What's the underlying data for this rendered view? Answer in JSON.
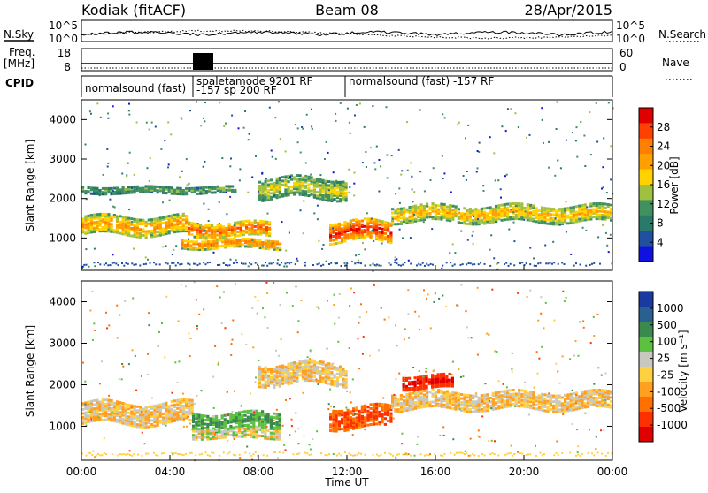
{
  "header": {
    "station": "Kodiak (fitACF)",
    "beam": "Beam 08",
    "date": "28/Apr/2015"
  },
  "top_panels": {
    "nsky_label": "N.Sky",
    "nsearch_label": "N.Search",
    "noise_ticks": [
      "10^5",
      "10^0"
    ],
    "freq_label": "Freq.",
    "freq_unit": "[MHz]",
    "freq_ticks": [
      "18",
      "8"
    ],
    "nave_label": "Nave",
    "nave_ticks": [
      "60",
      "0"
    ],
    "cpid_label": "CPID",
    "cpid_segments": [
      {
        "name": "normalsound (fast)",
        "sub": ""
      },
      {
        "name": "spaletamode 9201 RF",
        "sub": "-157 sp 200 RF"
      },
      {
        "name": "normalsound (fast)  -157 RF",
        "sub": ""
      }
    ]
  },
  "axes": {
    "ylabel": "Slant Range [km]",
    "xlabel": "Time UT",
    "x_ticks": [
      "00:00",
      "04:00",
      "08:00",
      "12:00",
      "16:00",
      "20:00",
      "00:00"
    ],
    "y_ticks": [
      "4000",
      "3000",
      "2000",
      "1000"
    ]
  },
  "power_colorbar": {
    "title": "Power [dB]",
    "ticks": [
      "28",
      "24",
      "20",
      "16",
      "12",
      "8",
      "4"
    ],
    "colors": [
      "#e00000",
      "#ff4000",
      "#ff8000",
      "#ffa000",
      "#ffd200",
      "#a0c040",
      "#409060",
      "#2a7a6a",
      "#2050a0",
      "#1010e0"
    ]
  },
  "velocity_colorbar": {
    "title": "Velocity [m s⁻¹]",
    "ticks": [
      "1000",
      "500",
      "100",
      "25",
      "-25",
      "-100",
      "-500",
      "-1000"
    ],
    "colors": [
      "#1a3aa0",
      "#2a6090",
      "#3a8a50",
      "#5cc040",
      "#c8c8c0",
      "#ffd040",
      "#ffa020",
      "#ff7000",
      "#ff3000",
      "#e00000"
    ]
  },
  "chart_data": [
    {
      "type": "heatmap",
      "title": "Power [dB]",
      "xlabel": "Time UT",
      "ylabel": "Slant Range [km]",
      "xlim_hours": [
        0,
        24
      ],
      "ylim_km": [
        180,
        4500
      ],
      "clim_dB": [
        0,
        30
      ],
      "bands": [
        {
          "t_start": 0,
          "t_end": 4.8,
          "r_center": 1350,
          "r_half": 220,
          "value_dB": 22
        },
        {
          "t_start": 4.8,
          "t_end": 8.5,
          "r_center": 1250,
          "r_half": 180,
          "value_dB": 26
        },
        {
          "t_start": 4.5,
          "t_end": 9.0,
          "r_center": 900,
          "r_half": 120,
          "value_dB": 24
        },
        {
          "t_start": 0,
          "t_end": 7.0,
          "r_center": 2250,
          "r_half": 80,
          "value_dB": 12
        },
        {
          "t_start": 8.0,
          "t_end": 12.0,
          "r_center": 2300,
          "r_half": 250,
          "value_dB": 16
        },
        {
          "t_start": 11.2,
          "t_end": 14.0,
          "r_center": 1200,
          "r_half": 250,
          "value_dB": 30
        },
        {
          "t_start": 14.0,
          "t_end": 24.0,
          "r_center": 1650,
          "r_half": 200,
          "value_dB": 20
        }
      ]
    },
    {
      "type": "heatmap",
      "title": "Velocity [m s-1]",
      "xlabel": "Time UT",
      "ylabel": "Slant Range [km]",
      "xlim_hours": [
        0,
        24
      ],
      "ylim_km": [
        180,
        4500
      ],
      "clim_ms": [
        -1000,
        1000
      ],
      "bands": [
        {
          "t_start": 0,
          "t_end": 5.0,
          "r_center": 1350,
          "r_half": 250,
          "value_ms": 0
        },
        {
          "t_start": 5.0,
          "t_end": 9.0,
          "r_center": 1150,
          "r_half": 200,
          "value_ms": 300
        },
        {
          "t_start": 5.0,
          "t_end": 9.0,
          "r_center": 850,
          "r_half": 100,
          "value_ms": 60
        },
        {
          "t_start": 8.0,
          "t_end": 12.0,
          "r_center": 2300,
          "r_half": 250,
          "value_ms": 0
        },
        {
          "t_start": 11.2,
          "t_end": 14.0,
          "r_center": 1250,
          "r_half": 250,
          "value_ms": -300
        },
        {
          "t_start": 14.5,
          "t_end": 16.8,
          "r_center": 2100,
          "r_half": 150,
          "value_ms": -600
        },
        {
          "t_start": 14.0,
          "t_end": 24.0,
          "r_center": 1650,
          "r_half": 200,
          "value_ms": 0
        }
      ]
    }
  ]
}
